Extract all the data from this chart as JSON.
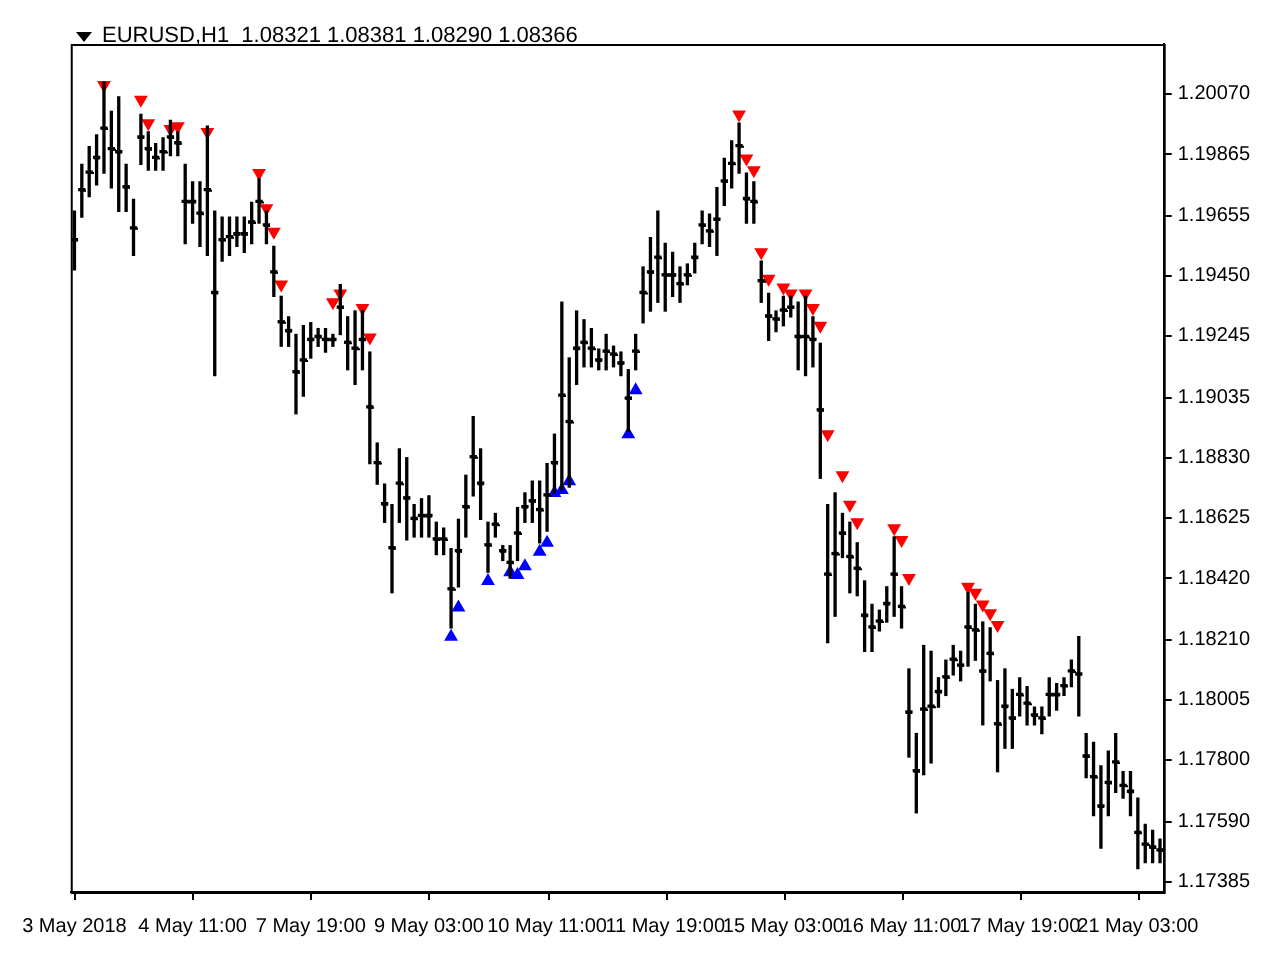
{
  "chart_data": {
    "type": "candlestick",
    "title": "EURUSD,H1  1.08321 1.08381 1.08290 1.08366",
    "color": "#000000",
    "categories": [
      "3 May 2018",
      null,
      null,
      null,
      null,
      null,
      null,
      null,
      null,
      null,
      null,
      null,
      null,
      null,
      null,
      null,
      "4 May 11:00",
      null,
      null,
      null,
      null,
      null,
      null,
      null,
      null,
      null,
      null,
      null,
      null,
      null,
      null,
      null,
      "7 May 19:00",
      null,
      null,
      null,
      null,
      null,
      null,
      null,
      null,
      null,
      null,
      null,
      null,
      null,
      null,
      null,
      "9 May 03:00",
      null,
      null,
      null,
      null,
      null,
      null,
      null,
      null,
      null,
      null,
      null,
      null,
      null,
      null,
      null,
      "10 May 11:00",
      null,
      null,
      null,
      null,
      null,
      null,
      null,
      null,
      null,
      null,
      null,
      null,
      null,
      null,
      null,
      "11 May 19:00",
      null,
      null,
      null,
      null,
      null,
      null,
      null,
      null,
      null,
      null,
      null,
      null,
      null,
      null,
      null,
      "15 May 03:00",
      null,
      null,
      null,
      null,
      null,
      null,
      null,
      null,
      null,
      null,
      null,
      null,
      null,
      null,
      null,
      "16 May 11:00",
      null,
      null,
      null,
      null,
      null,
      null,
      null,
      null,
      null,
      null,
      null,
      null,
      null,
      null,
      null,
      "17 May 19:00",
      null,
      null,
      null,
      null,
      null,
      null,
      null,
      null,
      null,
      null,
      null,
      null,
      null,
      null,
      null,
      "21 May 03:00",
      null,
      null,
      null
    ],
    "ohlc": [
      [
        1.1957,
        1.1967,
        1.1947,
        1.1957
      ],
      [
        1.1974,
        1.1983,
        1.1965,
        1.1974
      ],
      [
        1.198,
        1.1989,
        1.1972,
        1.198
      ],
      [
        1.1985,
        1.1993,
        1.1976,
        1.1985
      ],
      [
        1.1995,
        1.2011,
        1.198,
        1.1995
      ],
      [
        1.1988,
        1.2001,
        1.1975,
        1.1988
      ],
      [
        1.1987,
        1.2006,
        1.1967,
        1.1987
      ],
      [
        1.1975,
        1.1983,
        1.1967,
        1.1975
      ],
      [
        1.1961,
        1.1971,
        1.1952,
        1.1961
      ],
      [
        1.1992,
        1.2,
        1.1983,
        1.1992
      ],
      [
        1.1988,
        1.1994,
        1.1981,
        1.1988
      ],
      [
        1.1985,
        1.199,
        1.1981,
        1.1985
      ],
      [
        1.1987,
        1.1992,
        1.1981,
        1.1987
      ],
      [
        1.1992,
        1.1998,
        1.1986,
        1.1992
      ],
      [
        1.199,
        1.1994,
        1.1986,
        1.199
      ],
      [
        1.197,
        1.1983,
        1.1956,
        1.197
      ],
      [
        1.197,
        1.1977,
        1.1963,
        1.197
      ],
      [
        1.1966,
        1.1977,
        1.1955,
        1.1966
      ],
      [
        1.1974,
        1.1996,
        1.1952,
        1.1974
      ],
      [
        1.1939,
        1.1967,
        1.1911,
        1.1939
      ],
      [
        1.1957,
        1.1965,
        1.195,
        1.1957
      ],
      [
        1.1958,
        1.1965,
        1.1952,
        1.1958
      ],
      [
        1.1959,
        1.1965,
        1.1955,
        1.1959
      ],
      [
        1.1959,
        1.1965,
        1.1953,
        1.1959
      ],
      [
        1.1963,
        1.197,
        1.1956,
        1.1963
      ],
      [
        1.197,
        1.1978,
        1.1963,
        1.197
      ],
      [
        1.1962,
        1.1967,
        1.1956,
        1.1962
      ],
      [
        1.1946,
        1.1955,
        1.1938,
        1.1946
      ],
      [
        1.1929,
        1.1938,
        1.1921,
        1.1929
      ],
      [
        1.1926,
        1.1931,
        1.1921,
        1.1926
      ],
      [
        1.1912,
        1.1925,
        1.1898,
        1.1912
      ],
      [
        1.1916,
        1.1928,
        1.1904,
        1.1916
      ],
      [
        1.1923,
        1.1929,
        1.1917,
        1.1923
      ],
      [
        1.1924,
        1.1927,
        1.1921,
        1.1924
      ],
      [
        1.1923,
        1.1927,
        1.1919,
        1.1923
      ],
      [
        1.1923,
        1.1925,
        1.1921,
        1.1923
      ],
      [
        1.1934,
        1.1942,
        1.1925,
        1.1934
      ],
      [
        1.1922,
        1.1931,
        1.1913,
        1.1922
      ],
      [
        1.192,
        1.1933,
        1.1908,
        1.192
      ],
      [
        1.1923,
        1.1933,
        1.1913,
        1.1923
      ],
      [
        1.19,
        1.1919,
        1.1881,
        1.19
      ],
      [
        1.1881,
        1.1888,
        1.1874,
        1.1881
      ],
      [
        1.1867,
        1.1874,
        1.1861,
        1.1867
      ],
      [
        1.1852,
        1.1867,
        1.1837,
        1.1852
      ],
      [
        1.1874,
        1.1886,
        1.1861,
        1.1874
      ],
      [
        1.1869,
        1.1883,
        1.1855,
        1.1869
      ],
      [
        1.1862,
        1.1867,
        1.1856,
        1.1862
      ],
      [
        1.1863,
        1.1869,
        1.1856,
        1.1863
      ],
      [
        1.1863,
        1.187,
        1.1856,
        1.1863
      ],
      [
        1.1855,
        1.1861,
        1.185,
        1.1855
      ],
      [
        1.1855,
        1.1859,
        1.185,
        1.1855
      ],
      [
        1.1838,
        1.1852,
        1.1825,
        1.1838
      ],
      [
        1.1851,
        1.1862,
        1.1839,
        1.1851
      ],
      [
        1.1866,
        1.1877,
        1.1856,
        1.1866
      ],
      [
        1.1883,
        1.1897,
        1.187,
        1.1883
      ],
      [
        1.1874,
        1.1886,
        1.1862,
        1.1874
      ],
      [
        1.1853,
        1.1861,
        1.1844,
        1.1853
      ],
      [
        1.186,
        1.1864,
        1.1856,
        1.186
      ],
      [
        1.1851,
        1.1853,
        1.1848,
        1.1851
      ],
      [
        1.1847,
        1.1853,
        1.1842,
        1.1847
      ],
      [
        1.1857,
        1.1866,
        1.1848,
        1.1857
      ],
      [
        1.1866,
        1.1871,
        1.1861,
        1.1866
      ],
      [
        1.1868,
        1.1875,
        1.1861,
        1.1868
      ],
      [
        1.1865,
        1.1875,
        1.1854,
        1.1865
      ],
      [
        1.187,
        1.1881,
        1.1858,
        1.187
      ],
      [
        1.1881,
        1.1891,
        1.1871,
        1.1881
      ],
      [
        1.1904,
        1.1936,
        1.1872,
        1.1904
      ],
      [
        1.1895,
        1.1917,
        1.1873,
        1.1895
      ],
      [
        1.192,
        1.1933,
        1.1908,
        1.192
      ],
      [
        1.1922,
        1.193,
        1.1914,
        1.1922
      ],
      [
        1.192,
        1.1927,
        1.1914,
        1.192
      ],
      [
        1.1916,
        1.192,
        1.1913,
        1.1916
      ],
      [
        1.1919,
        1.1925,
        1.1913,
        1.1919
      ],
      [
        1.1918,
        1.1921,
        1.1914,
        1.1918
      ],
      [
        1.1915,
        1.1919,
        1.1911,
        1.1915
      ],
      [
        1.1903,
        1.1913,
        1.1892,
        1.1903
      ],
      [
        1.1919,
        1.1925,
        1.1913,
        1.1919
      ],
      [
        1.1939,
        1.1948,
        1.1929,
        1.1939
      ],
      [
        1.1946,
        1.1958,
        1.1933,
        1.1946
      ],
      [
        1.1951,
        1.1967,
        1.1936,
        1.1951
      ],
      [
        1.1945,
        1.1956,
        1.1933,
        1.1945
      ],
      [
        1.1945,
        1.1953,
        1.1938,
        1.1945
      ],
      [
        1.1942,
        1.1948,
        1.1936,
        1.1942
      ],
      [
        1.1945,
        1.1949,
        1.1942,
        1.1945
      ],
      [
        1.1951,
        1.1956,
        1.1946,
        1.1951
      ],
      [
        1.1962,
        1.1967,
        1.1956,
        1.1962
      ],
      [
        1.196,
        1.1966,
        1.1955,
        1.196
      ],
      [
        1.1964,
        1.1975,
        1.1952,
        1.1964
      ],
      [
        1.1977,
        1.1985,
        1.1969,
        1.1977
      ],
      [
        1.1983,
        1.1991,
        1.1975,
        1.1983
      ],
      [
        1.1989,
        1.1997,
        1.198,
        1.1989
      ],
      [
        1.1971,
        1.198,
        1.1963,
        1.1971
      ],
      [
        1.197,
        1.1977,
        1.1963,
        1.197
      ],
      [
        1.1943,
        1.195,
        1.1936,
        1.1943
      ],
      [
        1.1931,
        1.1939,
        1.1923,
        1.1931
      ],
      [
        1.193,
        1.1933,
        1.1926,
        1.193
      ],
      [
        1.1933,
        1.1938,
        1.1928,
        1.1933
      ],
      [
        1.1934,
        1.1938,
        1.1931,
        1.1934
      ],
      [
        1.1924,
        1.1936,
        1.1913,
        1.1924
      ],
      [
        1.1924,
        1.1938,
        1.1911,
        1.1924
      ],
      [
        1.1923,
        1.1931,
        1.1914,
        1.1923
      ],
      [
        1.1899,
        1.1922,
        1.1876,
        1.1899
      ],
      [
        1.1843,
        1.1867,
        1.182,
        1.1843
      ],
      [
        1.185,
        1.1871,
        1.1829,
        1.185
      ],
      [
        1.1857,
        1.1864,
        1.1849,
        1.1857
      ],
      [
        1.1849,
        1.1861,
        1.1837,
        1.1849
      ],
      [
        1.1845,
        1.1854,
        1.1836,
        1.1845
      ],
      [
        1.1829,
        1.1841,
        1.1817,
        1.1829
      ],
      [
        1.1825,
        1.1833,
        1.1817,
        1.1825
      ],
      [
        1.1827,
        1.1831,
        1.1824,
        1.1827
      ],
      [
        1.1833,
        1.1839,
        1.1827,
        1.1833
      ],
      [
        1.1843,
        1.1856,
        1.1829,
        1.1843
      ],
      [
        1.1832,
        1.1839,
        1.1825,
        1.1832
      ],
      [
        1.1796,
        1.1811,
        1.1781,
        1.1796
      ],
      [
        1.1776,
        1.1789,
        1.1762,
        1.1776
      ],
      [
        1.1797,
        1.1819,
        1.1775,
        1.1797
      ],
      [
        1.1798,
        1.1817,
        1.1779,
        1.1798
      ],
      [
        1.1803,
        1.1808,
        1.1798,
        1.1803
      ],
      [
        1.1808,
        1.1814,
        1.1802,
        1.1808
      ],
      [
        1.1814,
        1.1819,
        1.1809,
        1.1814
      ],
      [
        1.1812,
        1.1817,
        1.1807,
        1.1812
      ],
      [
        1.1825,
        1.1837,
        1.1812,
        1.1825
      ],
      [
        1.1824,
        1.1833,
        1.1814,
        1.1824
      ],
      [
        1.181,
        1.1827,
        1.1792,
        1.181
      ],
      [
        1.1816,
        1.1825,
        1.1807,
        1.1816
      ],
      [
        1.1792,
        1.1807,
        1.1776,
        1.1792
      ],
      [
        1.1798,
        1.1811,
        1.1784,
        1.1798
      ],
      [
        1.1794,
        1.1804,
        1.1784,
        1.1794
      ],
      [
        1.1802,
        1.1808,
        1.1795,
        1.1802
      ],
      [
        1.1799,
        1.1805,
        1.1792,
        1.1799
      ],
      [
        1.1795,
        1.1798,
        1.1792,
        1.1795
      ],
      [
        1.1794,
        1.1798,
        1.1789,
        1.1794
      ],
      [
        1.1802,
        1.1808,
        1.1795,
        1.1802
      ],
      [
        1.1802,
        1.1806,
        1.1797,
        1.1802
      ],
      [
        1.1805,
        1.1808,
        1.1802,
        1.1805
      ],
      [
        1.181,
        1.1814,
        1.1805,
        1.181
      ],
      [
        1.1809,
        1.1822,
        1.1795,
        1.1809
      ],
      [
        1.1781,
        1.1789,
        1.1774,
        1.1781
      ],
      [
        1.1774,
        1.1786,
        1.1761,
        1.1774
      ],
      [
        1.1764,
        1.1778,
        1.175,
        1.1764
      ],
      [
        1.1772,
        1.1783,
        1.1761,
        1.1772
      ],
      [
        1.1779,
        1.1789,
        1.1769,
        1.1779
      ],
      [
        1.1771,
        1.1776,
        1.1767,
        1.1771
      ],
      [
        1.1769,
        1.1776,
        1.1761,
        1.1769
      ],
      [
        1.1755,
        1.1767,
        1.1743,
        1.1755
      ],
      [
        1.1751,
        1.1758,
        1.1745,
        1.1751
      ],
      [
        1.175,
        1.1756,
        1.1745,
        1.175
      ],
      [
        1.1749,
        1.1753,
        1.1745,
        1.1749
      ]
    ],
    "series": [
      {
        "type": "scatter",
        "color": "#ff0000",
        "marker": "triangle",
        "values": [
          null,
          null,
          null,
          null,
          1.201,
          null,
          null,
          null,
          null,
          1.2005,
          1.1997,
          null,
          null,
          1.1995,
          1.1996,
          null,
          null,
          null,
          1.1994,
          null,
          null,
          null,
          null,
          null,
          null,
          1.198,
          1.1968,
          1.196,
          1.1942,
          null,
          null,
          null,
          null,
          null,
          null,
          1.1936,
          1.1939,
          null,
          null,
          1.1934,
          1.1924,
          null,
          null,
          null,
          null,
          null,
          null,
          null,
          null,
          null,
          null,
          null,
          null,
          null,
          null,
          null,
          null,
          null,
          null,
          null,
          null,
          null,
          null,
          null,
          null,
          null,
          null,
          null,
          null,
          null,
          null,
          null,
          null,
          null,
          null,
          null,
          null,
          null,
          null,
          null,
          null,
          null,
          null,
          null,
          null,
          null,
          null,
          null,
          null,
          null,
          1.2,
          1.1985,
          1.1981,
          1.1953,
          1.1944,
          null,
          1.1941,
          1.1939,
          null,
          1.1939,
          1.1934,
          1.1928,
          1.1891,
          null,
          1.1877,
          1.1867,
          1.1861,
          null,
          null,
          null,
          null,
          1.1859,
          1.1855,
          1.1842,
          null,
          null,
          null,
          null,
          null,
          null,
          null,
          1.1839,
          1.1837,
          1.1833,
          1.183,
          1.1826,
          null,
          null,
          null,
          null,
          null,
          null,
          null,
          null,
          null,
          null,
          null,
          null,
          null,
          null,
          null,
          null,
          null,
          null,
          null,
          null,
          null,
          null
        ]
      },
      {
        "type": "scatter",
        "color": "#0000ff",
        "marker": "triangle",
        "values": [
          null,
          null,
          null,
          null,
          null,
          null,
          null,
          null,
          null,
          null,
          null,
          null,
          null,
          null,
          null,
          null,
          null,
          null,
          null,
          null,
          null,
          null,
          null,
          null,
          null,
          null,
          null,
          null,
          null,
          null,
          null,
          null,
          null,
          null,
          null,
          null,
          null,
          null,
          null,
          null,
          null,
          null,
          null,
          null,
          null,
          null,
          null,
          null,
          null,
          null,
          null,
          1.1822,
          1.1832,
          null,
          null,
          null,
          1.1841,
          null,
          null,
          1.1844,
          1.1843,
          1.1846,
          null,
          1.1851,
          1.1854,
          1.1871,
          1.1872,
          1.1875,
          null,
          null,
          null,
          null,
          null,
          null,
          null,
          1.1891,
          1.1906,
          null,
          null,
          null,
          null,
          null,
          null,
          null,
          null,
          null,
          null,
          null,
          null,
          null,
          null,
          null,
          null,
          null,
          null,
          null,
          null,
          null,
          null,
          null,
          null,
          null,
          null,
          null,
          null,
          null,
          null,
          null,
          null,
          null,
          null,
          null,
          null,
          null,
          null,
          null,
          null,
          null,
          null,
          null,
          null,
          null,
          null,
          null,
          null,
          null,
          null,
          null,
          null,
          null,
          null,
          null,
          null,
          null,
          null,
          null,
          null,
          null,
          null,
          null,
          null,
          null,
          null,
          null,
          null,
          null,
          null,
          null
        ]
      }
    ],
    "ylim": [
      1.1735,
      1.2024
    ],
    "yticks": [
      {
        "value": 1.2007,
        "label": "1.20070"
      },
      {
        "value": 1.19865,
        "label": "1.19865"
      },
      {
        "value": 1.19655,
        "label": "1.19655"
      },
      {
        "value": 1.1945,
        "label": "1.19450"
      },
      {
        "value": 1.19245,
        "label": "1.19245"
      },
      {
        "value": 1.19035,
        "label": "1.19035"
      },
      {
        "value": 1.1883,
        "label": "1.18830"
      },
      {
        "value": 1.18625,
        "label": "1.18625"
      },
      {
        "value": 1.1842,
        "label": "1.18420"
      },
      {
        "value": 1.1821,
        "label": "1.18210"
      },
      {
        "value": 1.18005,
        "label": "1.18005"
      },
      {
        "value": 1.178,
        "label": "1.17800"
      },
      {
        "value": 1.1759,
        "label": "1.17590"
      },
      {
        "value": 1.17385,
        "label": "1.17385"
      }
    ]
  }
}
